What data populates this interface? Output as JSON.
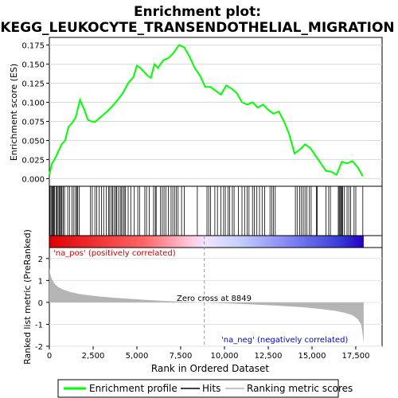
{
  "chart_data": {
    "type": "line",
    "title_line1": "Enrichment plot:",
    "title_line2": "KEGG_LEUKOCYTE_TRANSENDOTHELIAL_MIGRATION",
    "es_panel": {
      "ylabel": "Enrichment score (ES)",
      "ylim": [
        -0.01,
        0.185
      ],
      "yticks": [
        0.0,
        0.025,
        0.05,
        0.075,
        0.1,
        0.125,
        0.15,
        0.175
      ],
      "ytick_labels": [
        "0.000",
        "0.025",
        "0.050",
        "0.075",
        "0.100",
        "0.125",
        "0.150",
        "0.175"
      ],
      "line_color": "#00ff00",
      "series": {
        "name": "Enrichment profile",
        "x": [
          0,
          150,
          300,
          500,
          700,
          900,
          1100,
          1300,
          1500,
          1750,
          2000,
          2200,
          2400,
          2600,
          2800,
          3000,
          3300,
          3600,
          3900,
          4200,
          4500,
          4800,
          5000,
          5200,
          5400,
          5600,
          5800,
          6000,
          6200,
          6500,
          6800,
          7100,
          7400,
          7700,
          8000,
          8300,
          8600,
          8900,
          9200,
          9500,
          9800,
          10100,
          10400,
          10700,
          11000,
          11300,
          11600,
          11900,
          12200,
          12500,
          12800,
          13100,
          13400,
          13700,
          14000,
          14300,
          14600,
          14900,
          15200,
          15500,
          15800,
          16100,
          16400,
          16700,
          17000,
          17300,
          17600,
          17900
        ],
        "y": [
          0.005,
          0.02,
          0.025,
          0.035,
          0.045,
          0.05,
          0.068,
          0.073,
          0.08,
          0.103,
          0.09,
          0.077,
          0.075,
          0.074,
          0.078,
          0.082,
          0.088,
          0.095,
          0.103,
          0.112,
          0.125,
          0.133,
          0.148,
          0.145,
          0.14,
          0.135,
          0.132,
          0.15,
          0.145,
          0.155,
          0.158,
          0.165,
          0.175,
          0.172,
          0.16,
          0.145,
          0.135,
          0.12,
          0.12,
          0.115,
          0.11,
          0.122,
          0.118,
          0.112,
          0.1,
          0.097,
          0.1,
          0.093,
          0.097,
          0.09,
          0.085,
          0.088,
          0.075,
          0.058,
          0.033,
          0.038,
          0.045,
          0.04,
          0.03,
          0.02,
          0.01,
          0.009,
          0.005,
          0.022,
          0.02,
          0.023,
          0.015,
          0.003
        ]
      }
    },
    "hits": [
      40,
      100,
      160,
      210,
      250,
      300,
      380,
      440,
      500,
      560,
      620,
      680,
      720,
      800,
      870,
      1050,
      1150,
      1300,
      1400,
      1500,
      1560,
      1620,
      1700,
      2350,
      2450,
      2600,
      2700,
      2850,
      2980,
      3100,
      3250,
      3380,
      3450,
      3550,
      3620,
      3700,
      3800,
      3850,
      3950,
      4050,
      4120,
      4200,
      4280,
      4350,
      4500,
      4650,
      4850,
      5050,
      5150,
      5450,
      5550,
      5700,
      5950,
      6050,
      6100,
      6350,
      6450,
      6550,
      6650,
      6800,
      6950,
      7050,
      7150,
      7250,
      7350,
      7550,
      7700,
      8450,
      9000,
      9100,
      9200,
      9450,
      9600,
      9800,
      9950,
      10050,
      10200,
      10300,
      10450,
      10550,
      10800,
      11000,
      11150,
      11300,
      11400,
      11600,
      11700,
      11850,
      12000,
      12150,
      12300,
      12600,
      12700,
      12800,
      12900,
      14050,
      14150,
      14300,
      14400,
      14500,
      14600,
      14700,
      14850,
      14950,
      15250,
      15300,
      15800,
      15950,
      16050,
      16500,
      16550,
      16600,
      16650,
      16700,
      16750,
      16850,
      17000,
      17100,
      17200,
      17400,
      17500,
      17900
    ],
    "ranked_metric": {
      "ylabel": "Ranked list metric (PreRanked)",
      "ylim": [
        -2,
        2.5
      ],
      "yticks": [
        -2,
        -1,
        0,
        1,
        2
      ],
      "ytick_labels": [
        "-2",
        "-1",
        "0",
        "1",
        "2"
      ],
      "x": [
        0,
        50,
        150,
        300,
        500,
        800,
        1200,
        1700,
        2500,
        3500,
        5000,
        6500,
        8000,
        8849,
        10000,
        11500,
        13000,
        14500,
        15500,
        16300,
        16900,
        17300,
        17600,
        17800,
        17900,
        17950
      ],
      "y": [
        1.6,
        1.3,
        1.05,
        0.85,
        0.7,
        0.58,
        0.47,
        0.38,
        0.3,
        0.22,
        0.14,
        0.07,
        0.02,
        0.0,
        -0.04,
        -0.09,
        -0.15,
        -0.22,
        -0.3,
        -0.38,
        -0.48,
        -0.58,
        -0.75,
        -1.0,
        -1.5,
        -1.9
      ],
      "fill_color": "#b4b4b4"
    },
    "xaxis": {
      "label": "Rank in Ordered Dataset",
      "xlim": [
        0,
        19000
      ],
      "ticks": [
        0,
        2500,
        5000,
        7500,
        10000,
        12500,
        15000,
        17500
      ],
      "tick_labels": [
        "0",
        "2,500",
        "5,000",
        "7,500",
        "10,000",
        "12,500",
        "15,000",
        "17,500"
      ]
    },
    "annotations": {
      "pos_label": "'na_pos' (positively correlated)",
      "neg_label": "'na_neg' (negatively correlated)",
      "zero_cross": "Zero cross at 8849",
      "zero_cross_value": 8849
    },
    "legend": {
      "placement": "bottom",
      "items": [
        "Enrichment profile",
        "Hits",
        "Ranking metric scores"
      ]
    }
  }
}
